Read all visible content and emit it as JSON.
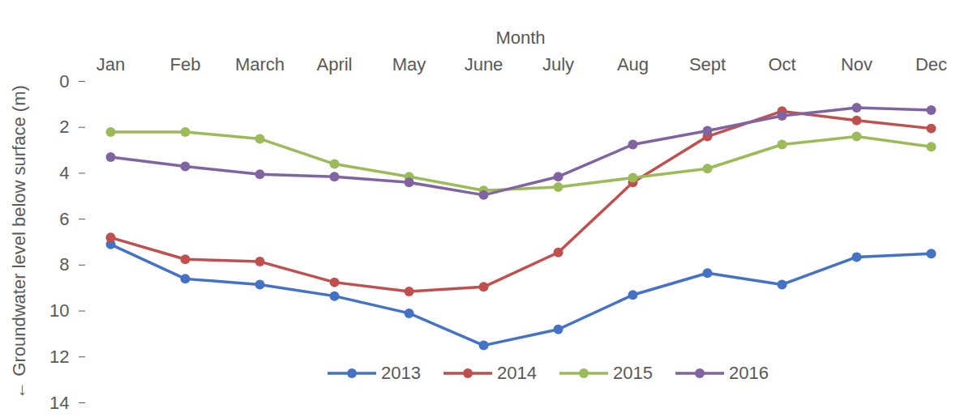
{
  "chart_data": {
    "type": "line",
    "x_label": "Month",
    "y_label": "Groundwater level below surface (m)",
    "categories": [
      "Jan",
      "Feb",
      "March",
      "April",
      "May",
      "June",
      "July",
      "Aug",
      "Sept",
      "Oct",
      "Nov",
      "Dec"
    ],
    "series": [
      {
        "name": "2013",
        "color": "#4472c4",
        "values": [
          7.1,
          8.6,
          8.85,
          9.35,
          10.1,
          11.5,
          10.8,
          9.3,
          8.35,
          8.85,
          7.65,
          7.5
        ]
      },
      {
        "name": "2014",
        "color": "#c0504d",
        "values": [
          6.8,
          7.75,
          7.85,
          8.75,
          9.15,
          8.95,
          7.45,
          4.4,
          2.4,
          1.3,
          1.7,
          2.05
        ]
      },
      {
        "name": "2015",
        "color": "#9bbb59",
        "values": [
          2.2,
          2.2,
          2.5,
          3.6,
          4.15,
          4.75,
          4.6,
          4.2,
          3.8,
          2.75,
          2.4,
          2.85
        ]
      },
      {
        "name": "2016",
        "color": "#8064a2",
        "values": [
          3.3,
          3.7,
          4.05,
          4.15,
          4.4,
          4.95,
          4.15,
          2.75,
          2.15,
          1.5,
          1.15,
          1.25
        ]
      }
    ],
    "ylim": [
      0,
      14
    ],
    "yticks": [
      0,
      2,
      4,
      6,
      8,
      10,
      12,
      14
    ],
    "grid": false,
    "legend": "bottom",
    "marker": "circle"
  }
}
